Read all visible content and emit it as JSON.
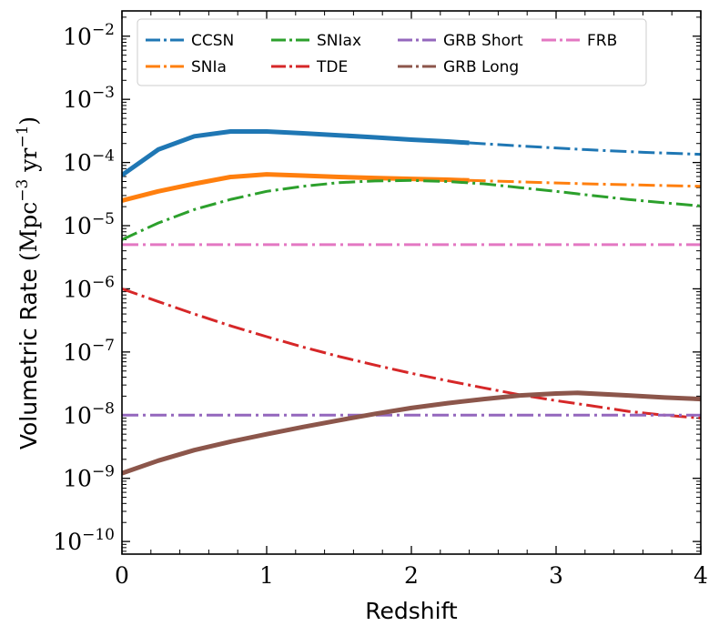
{
  "chart_data": {
    "type": "line",
    "title": "",
    "xlabel": "Redshift",
    "ylabel_main": "Volumetric Rate",
    "ylabel_units": "(Mpc",
    "ylabel_exp1": "−3",
    "ylabel_mid": " yr",
    "ylabel_exp2": "−1",
    "ylabel_close": ")",
    "xlim": [
      0,
      4
    ],
    "ylim_log10": [
      -10.2,
      -1.6
    ],
    "y_scale": "log",
    "legend_position": "top",
    "x_ticks": [
      {
        "value": 0,
        "label": "0"
      },
      {
        "value": 1,
        "label": "1"
      },
      {
        "value": 2,
        "label": "2"
      },
      {
        "value": 3,
        "label": "3"
      },
      {
        "value": 4,
        "label": "4"
      }
    ],
    "y_ticks": [
      {
        "value": -10,
        "base": "10",
        "exp": "−10"
      },
      {
        "value": -9,
        "base": "10",
        "exp": "−9"
      },
      {
        "value": -8,
        "base": "10",
        "exp": "−8"
      },
      {
        "value": -7,
        "base": "10",
        "exp": "−7"
      },
      {
        "value": -6,
        "base": "10",
        "exp": "−6"
      },
      {
        "value": -5,
        "base": "10",
        "exp": "−5"
      },
      {
        "value": -4,
        "base": "10",
        "exp": "−4"
      },
      {
        "value": -3,
        "base": "10",
        "exp": "−3"
      },
      {
        "value": -2,
        "base": "10",
        "exp": "−2"
      }
    ],
    "series": [
      {
        "name": "CCSN",
        "color": "#1f77b4",
        "solid": {
          "x": [
            0,
            0.25,
            0.5,
            0.75,
            1.0,
            1.25,
            1.5,
            1.75,
            2.0,
            2.25,
            2.4
          ],
          "y": [
            6.3e-05,
            0.00016,
            0.00026,
            0.00031,
            0.00031,
            0.00029,
            0.00027,
            0.00025,
            0.00023,
            0.000215,
            0.000205
          ]
        },
        "dashed": {
          "x": [
            2.4,
            2.8,
            3.2,
            3.6,
            4.0
          ],
          "y": [
            0.000205,
            0.00018,
            0.00016,
            0.000145,
            0.000135
          ]
        }
      },
      {
        "name": "SNIa",
        "color": "#ff7f0e",
        "solid": {
          "x": [
            0,
            0.25,
            0.5,
            0.75,
            1.0,
            1.25,
            1.5,
            1.75,
            2.0,
            2.25,
            2.4
          ],
          "y": [
            2.5e-05,
            3.5e-05,
            4.6e-05,
            5.9e-05,
            6.5e-05,
            6.2e-05,
            5.9e-05,
            5.7e-05,
            5.5e-05,
            5.35e-05,
            5.2e-05
          ]
        },
        "dashed": {
          "x": [
            2.4,
            2.8,
            3.2,
            3.6,
            4.0
          ],
          "y": [
            5.2e-05,
            4.9e-05,
            4.6e-05,
            4.4e-05,
            4.2e-05
          ]
        }
      },
      {
        "name": "SNIax",
        "color": "#2ca02c",
        "solid": null,
        "dashed": {
          "x": [
            0,
            0.25,
            0.5,
            0.75,
            1.0,
            1.25,
            1.5,
            1.75,
            2.0,
            2.25,
            2.5,
            2.75,
            3.0,
            3.25,
            3.5,
            3.75,
            4.0
          ],
          "y": [
            6e-06,
            1.1e-05,
            1.8e-05,
            2.6e-05,
            3.5e-05,
            4.2e-05,
            4.8e-05,
            5.1e-05,
            5.2e-05,
            5e-05,
            4.6e-05,
            4e-05,
            3.5e-05,
            3e-05,
            2.6e-05,
            2.3e-05,
            2.05e-05
          ]
        }
      },
      {
        "name": "TDE",
        "color": "#d62728",
        "solid": null,
        "dashed": {
          "x": [
            0,
            0.25,
            0.5,
            0.75,
            1.0,
            1.25,
            1.5,
            1.75,
            2.0,
            2.25,
            2.5,
            2.75,
            3.0,
            3.25,
            3.5,
            3.75,
            4.0
          ],
          "y": [
            1e-06,
            6.3e-07,
            4e-07,
            2.6e-07,
            1.75e-07,
            1.2e-07,
            8.5e-08,
            6.2e-08,
            4.6e-08,
            3.5e-08,
            2.7e-08,
            2.1e-08,
            1.7e-08,
            1.4e-08,
            1.15e-08,
            1e-08,
            9e-09
          ]
        }
      },
      {
        "name": "GRB Short",
        "color": "#9467bd",
        "solid": null,
        "dashed": {
          "x": [
            0,
            4
          ],
          "y": [
            1e-08,
            1e-08
          ]
        }
      },
      {
        "name": "GRB Long",
        "color": "#8c564b",
        "solid": {
          "x": [
            0,
            0.25,
            0.5,
            0.75,
            1.0,
            1.25,
            1.5,
            1.75,
            2.0,
            2.25,
            2.5,
            2.75,
            3.0,
            3.15,
            3.5,
            3.75,
            4.0
          ],
          "y": [
            1.2e-09,
            1.9e-09,
            2.8e-09,
            3.8e-09,
            5e-09,
            6.5e-09,
            8.3e-09,
            1.05e-08,
            1.3e-08,
            1.55e-08,
            1.8e-08,
            2.05e-08,
            2.2e-08,
            2.25e-08,
            2.05e-08,
            1.9e-08,
            1.8e-08
          ]
        },
        "dashed": null
      },
      {
        "name": "FRB",
        "color": "#e377c2",
        "solid": null,
        "dashed": {
          "x": [
            0,
            4
          ],
          "y": [
            5e-06,
            5e-06
          ]
        }
      }
    ]
  }
}
